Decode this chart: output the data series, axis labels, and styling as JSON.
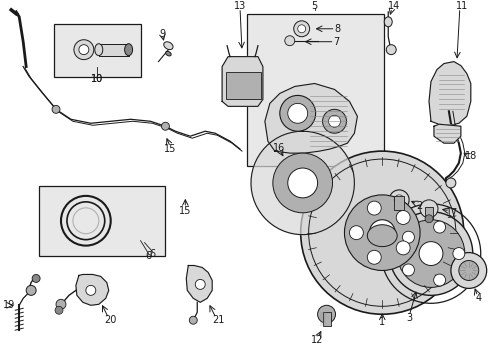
{
  "bg": "#ffffff",
  "lc": "#1a1a1a",
  "gray_light": "#d8d8d8",
  "gray_med": "#b0b0b0",
  "gray_dark": "#888888",
  "box_fill": "#e8e8e8",
  "fig_w": 4.89,
  "fig_h": 3.6,
  "dpi": 100
}
